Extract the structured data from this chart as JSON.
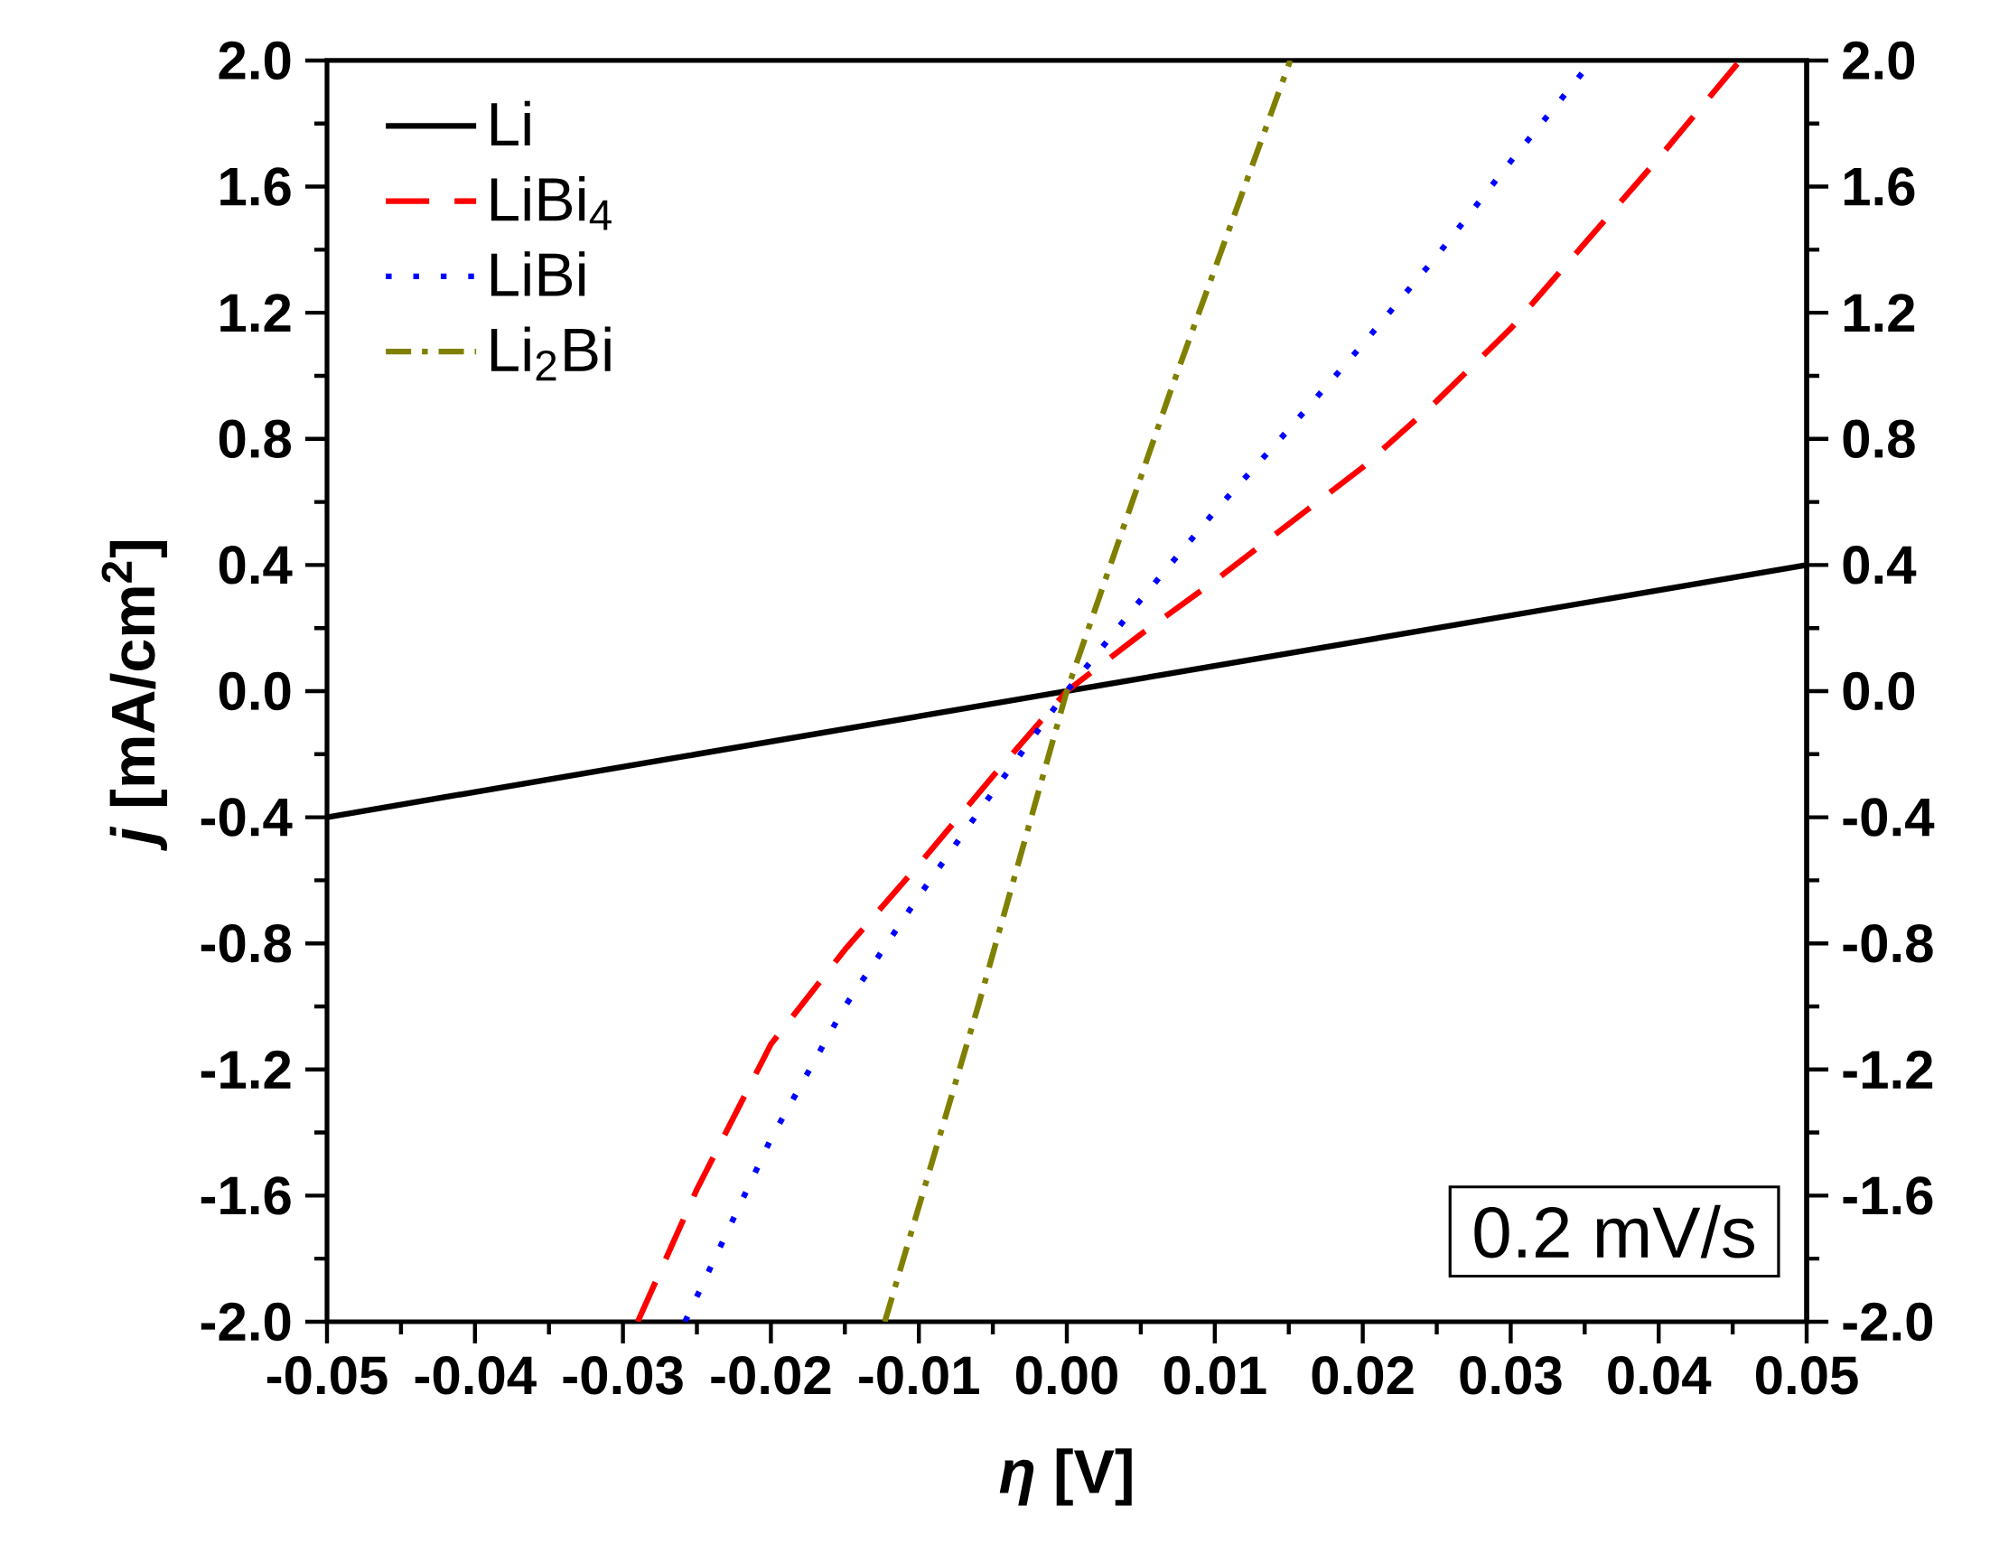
{
  "chart_data": {
    "type": "line",
    "xlabel": "*η* [V]",
    "ylabel": "*j* [mA/cm$^{2}$]",
    "xlim": [
      -0.05,
      0.05
    ],
    "ylim": [
      -2.0,
      2.0
    ],
    "y2lim": [
      -2.0,
      2.0
    ],
    "xticks": [
      {
        "value": -0.05,
        "label": "-0.05"
      },
      {
        "value": -0.04,
        "label": "-0.04"
      },
      {
        "value": -0.03,
        "label": "-0.03"
      },
      {
        "value": -0.02,
        "label": "-0.02"
      },
      {
        "value": -0.01,
        "label": "-0.01"
      },
      {
        "value": 0,
        "label": "0.00"
      },
      {
        "value": 0.01,
        "label": "0.01"
      },
      {
        "value": 0.02,
        "label": "0.02"
      },
      {
        "value": 0.03,
        "label": "0.03"
      },
      {
        "value": 0.04,
        "label": "0.04"
      },
      {
        "value": 0.05,
        "label": "0.05"
      }
    ],
    "yticks": [
      {
        "value": -2.0,
        "label": "-2.0"
      },
      {
        "value": -1.6,
        "label": "-1.6"
      },
      {
        "value": -1.2,
        "label": "-1.2"
      },
      {
        "value": -0.8,
        "label": "-0.8"
      },
      {
        "value": -0.4,
        "label": "-0.4"
      },
      {
        "value": 0,
        "label": "0.0"
      },
      {
        "value": 0.4,
        "label": "0.4"
      },
      {
        "value": 0.8,
        "label": "0.8"
      },
      {
        "value": 1.2,
        "label": "1.2"
      },
      {
        "value": 1.6,
        "label": "1.6"
      },
      {
        "value": 2.0,
        "label": "2.0"
      }
    ],
    "y2ticks": [
      {
        "value": -2.0,
        "label": "-2.0"
      },
      {
        "value": -1.6,
        "label": "-1.6"
      },
      {
        "value": -1.2,
        "label": "-1.2"
      },
      {
        "value": -0.8,
        "label": "-0.8"
      },
      {
        "value": -0.4,
        "label": "-0.4"
      },
      {
        "value": 0,
        "label": "0.0"
      },
      {
        "value": 0.4,
        "label": "0.4"
      },
      {
        "value": 0.8,
        "label": "0.8"
      },
      {
        "value": 1.2,
        "label": "1.2"
      },
      {
        "value": 1.6,
        "label": "1.6"
      },
      {
        "value": 2.0,
        "label": "2.0"
      }
    ],
    "legend": "top left",
    "annotations": [
      "0.2 mV/s"
    ],
    "series": [
      {
        "name": "Li",
        "color": "#000000",
        "line_style": "solid",
        "x": [
          -0.05,
          -0.025,
          0,
          0.025,
          0.05
        ],
        "values": [
          -0.4,
          -0.2,
          0.0,
          0.2,
          0.4
        ]
      },
      {
        "name": "LiBi$_{4}$",
        "color": "#ff0000",
        "line_style": "dashed",
        "x": [
          -0.029,
          -0.025,
          -0.02,
          -0.015,
          -0.01,
          -0.005,
          0,
          0.005,
          0.01,
          0.015,
          0.02,
          0.025,
          0.03,
          0.035,
          0.04,
          0.0455
        ],
        "values": [
          -2.0,
          -1.58,
          -1.12,
          -0.82,
          -0.55,
          -0.27,
          0.0,
          0.18,
          0.35,
          0.53,
          0.71,
          0.92,
          1.15,
          1.42,
          1.69,
          2.0
        ]
      },
      {
        "name": "LiBi",
        "color": "#0000ff",
        "line_style": "dotted",
        "x": [
          -0.0258,
          -0.02,
          -0.015,
          -0.01,
          -0.005,
          0,
          0.005,
          0.01,
          0.015,
          0.02,
          0.025,
          0.03,
          0.035
        ],
        "values": [
          -2.0,
          -1.42,
          -1.0,
          -0.65,
          -0.32,
          0.0,
          0.29,
          0.57,
          0.83,
          1.1,
          1.38,
          1.68,
          1.97
        ]
      },
      {
        "name": "Li$_{2}$Bi",
        "color": "#808000",
        "line_style": "dashdot",
        "x": [
          -0.0123,
          -0.006,
          0,
          0.007,
          0.0151
        ],
        "values": [
          -2.0,
          -1.0,
          0.0,
          0.95,
          2.0
        ]
      }
    ]
  }
}
